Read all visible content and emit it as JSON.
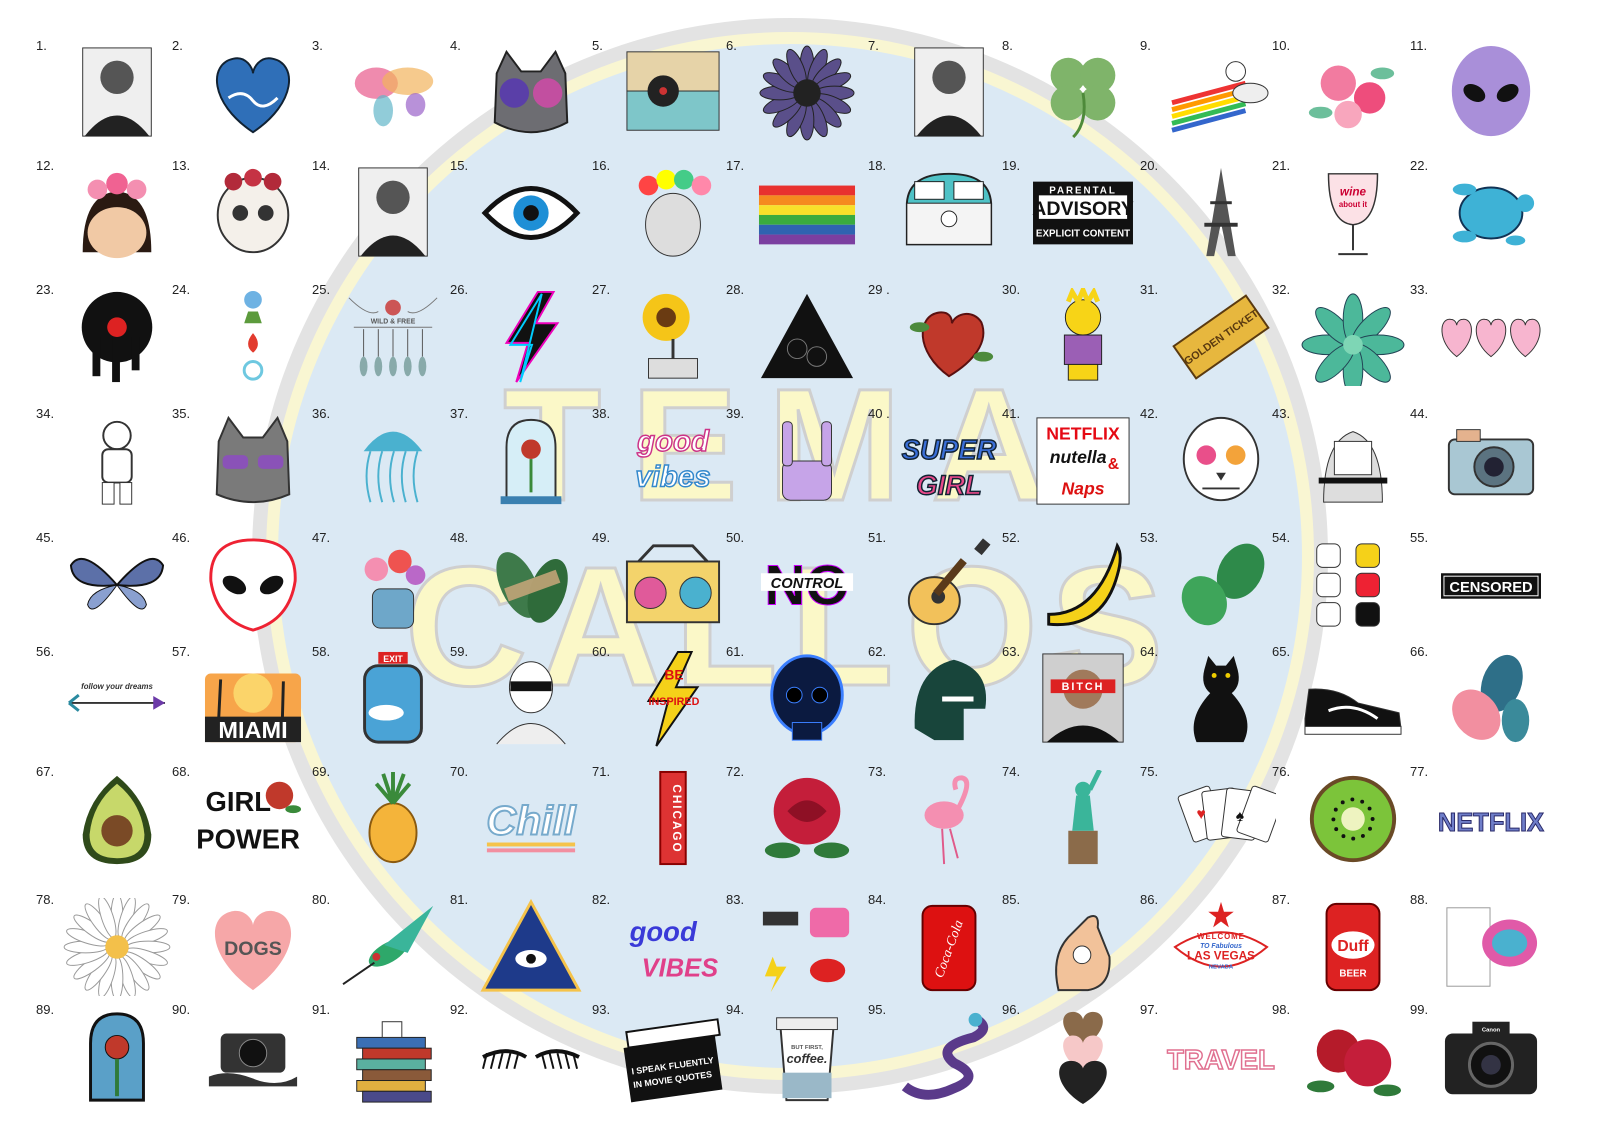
{
  "watermark": {
    "line1": "TEMA",
    "line2": "CALLOS"
  },
  "colors": {
    "circle_fill": "#dbe9f4",
    "ring": "#d8d8d8",
    "watermark_yellow": "#fbf8c8"
  },
  "stickers": [
    {
      "num": "1.",
      "subject": "man-portrait"
    },
    {
      "num": "2.",
      "subject": "ocean-heart"
    },
    {
      "num": "3.",
      "subject": "watercolor-world-map"
    },
    {
      "num": "4.",
      "subject": "cat-with-galaxy-glasses"
    },
    {
      "num": "5.",
      "subject": "record-player"
    },
    {
      "num": "6.",
      "subject": "galaxy-daisy"
    },
    {
      "num": "7.",
      "subject": "man-portrait"
    },
    {
      "num": "8.",
      "subject": "four-leaf-clover"
    },
    {
      "num": "9.",
      "subject": "astronaut-rainbow-rocket"
    },
    {
      "num": "10.",
      "subject": "flower-bouquet"
    },
    {
      "num": "11.",
      "subject": "holographic-alien"
    },
    {
      "num": "12.",
      "subject": "frida-flower-crown"
    },
    {
      "num": "13.",
      "subject": "rose-skull"
    },
    {
      "num": "14.",
      "subject": "man-portrait"
    },
    {
      "num": "15.",
      "subject": "evil-eye"
    },
    {
      "num": "16.",
      "subject": "frida-portrait"
    },
    {
      "num": "17.",
      "subject": "rainbow-flag"
    },
    {
      "num": "18.",
      "subject": "vw-van"
    },
    {
      "num": "19.",
      "subject": "parental-advisory",
      "text": [
        "PARENTAL",
        "ADVISORY",
        "EXPLICIT CONTENT"
      ]
    },
    {
      "num": "20.",
      "subject": "eiffel-tower"
    },
    {
      "num": "21.",
      "subject": "wine-glass",
      "text": [
        "wine",
        "about it"
      ]
    },
    {
      "num": "22.",
      "subject": "sea-turtle"
    },
    {
      "num": "23.",
      "subject": "dripping-vinyl"
    },
    {
      "num": "24.",
      "subject": "elements-symbols"
    },
    {
      "num": "25.",
      "subject": "wild-and-free-dreamcatcher",
      "text": [
        "WILD & FREE"
      ]
    },
    {
      "num": "26.",
      "subject": "lightning-bolt"
    },
    {
      "num": "27.",
      "subject": "sunflower-gramophone"
    },
    {
      "num": "28.",
      "subject": "rose-triangle"
    },
    {
      "num": "29 .",
      "subject": "anatomical-heart"
    },
    {
      "num": "30.",
      "subject": "lisa-simpson"
    },
    {
      "num": "31.",
      "subject": "golden-ticket",
      "text": [
        "GOLDEN TICKET"
      ]
    },
    {
      "num": "32.",
      "subject": "succulent"
    },
    {
      "num": "33.",
      "subject": "three-hearts"
    },
    {
      "num": "34.",
      "subject": "astronaut-peace"
    },
    {
      "num": "35.",
      "subject": "cat-with-sunglasses"
    },
    {
      "num": "36.",
      "subject": "jellyfish"
    },
    {
      "num": "37.",
      "subject": "rose-in-glass-dome"
    },
    {
      "num": "38.",
      "subject": "good-vibes-retro",
      "text": [
        "good",
        "vibes"
      ]
    },
    {
      "num": "39.",
      "subject": "skeleton-rock-hand"
    },
    {
      "num": "40 .",
      "subject": "supergirl-logo",
      "text": [
        "SUPER",
        "GIRL"
      ]
    },
    {
      "num": "41.",
      "subject": "netflix-nutella-naps",
      "text": [
        "NETFLIX",
        "nutella",
        "&",
        "Naps"
      ]
    },
    {
      "num": "42.",
      "subject": "sugar-skull"
    },
    {
      "num": "43.",
      "subject": "girl-hiding-face"
    },
    {
      "num": "44.",
      "subject": "vintage-camera"
    },
    {
      "num": "45.",
      "subject": "galaxy-butterfly"
    },
    {
      "num": "46.",
      "subject": "alien-head"
    },
    {
      "num": "47.",
      "subject": "flowers-in-jar"
    },
    {
      "num": "48.",
      "subject": "taped-leaves"
    },
    {
      "num": "49.",
      "subject": "boombox"
    },
    {
      "num": "50.",
      "subject": "no-control",
      "text": [
        "NO",
        "CONTROL"
      ]
    },
    {
      "num": "51.",
      "subject": "acoustic-guitar"
    },
    {
      "num": "52.",
      "subject": "banana"
    },
    {
      "num": "53.",
      "subject": "monstera-leaves"
    },
    {
      "num": "54.",
      "subject": "lucky-cats"
    },
    {
      "num": "55.",
      "subject": "censored-bar",
      "text": [
        "CENSORED"
      ]
    },
    {
      "num": "56.",
      "subject": "follow-your-dreams-arrow",
      "text": [
        "follow your dreams"
      ]
    },
    {
      "num": "57.",
      "subject": "miami-sunset",
      "text": [
        "MIAMI"
      ]
    },
    {
      "num": "58.",
      "subject": "exit-window",
      "text": [
        "EXIT"
      ]
    },
    {
      "num": "59.",
      "subject": "girl-with-sunglasses"
    },
    {
      "num": "60.",
      "subject": "be-inspired-bolt",
      "text": [
        "BE",
        "INSPIRED"
      ]
    },
    {
      "num": "61.",
      "subject": "x-ray-skull"
    },
    {
      "num": "62.",
      "subject": "spartan-helmet"
    },
    {
      "num": "63.",
      "subject": "man-with-label",
      "text": [
        "BITCH"
      ]
    },
    {
      "num": "64.",
      "subject": "black-cat"
    },
    {
      "num": "65.",
      "subject": "sneaker"
    },
    {
      "num": "66.",
      "subject": "tropical-leaves"
    },
    {
      "num": "67.",
      "subject": "avocado"
    },
    {
      "num": "68.",
      "subject": "girl-power-rose",
      "text": [
        "GIRL",
        "POWER"
      ]
    },
    {
      "num": "69.",
      "subject": "pineapple"
    },
    {
      "num": "70.",
      "subject": "chill-retro",
      "text": [
        "Chill"
      ]
    },
    {
      "num": "71.",
      "subject": "chicago-theatre-sign",
      "text": [
        "CHICAGO"
      ]
    },
    {
      "num": "72.",
      "subject": "red-rose"
    },
    {
      "num": "73.",
      "subject": "flamingo"
    },
    {
      "num": "74.",
      "subject": "statue-of-liberty"
    },
    {
      "num": "75.",
      "subject": "playing-cards"
    },
    {
      "num": "76.",
      "subject": "kiwi-slice"
    },
    {
      "num": "77.",
      "subject": "netflix-logo",
      "text": [
        "NETFLIX"
      ]
    },
    {
      "num": "78.",
      "subject": "daisy"
    },
    {
      "num": "79.",
      "subject": "dogs-heart",
      "text": [
        "DOGS"
      ]
    },
    {
      "num": "80.",
      "subject": "hummingbird"
    },
    {
      "num": "81.",
      "subject": "eye-pyramid"
    },
    {
      "num": "82.",
      "subject": "good-vibes-script",
      "text": [
        "good",
        "VIBES"
      ]
    },
    {
      "num": "83.",
      "subject": "girl-gang-set"
    },
    {
      "num": "84.",
      "subject": "coca-cola-can",
      "text": [
        "Coca-Cola"
      ]
    },
    {
      "num": "85.",
      "subject": "ok-hand"
    },
    {
      "num": "86.",
      "subject": "las-vegas-sign",
      "text": [
        "WELCOME",
        "TO Fabulous",
        "LAS VEGAS",
        "NEVADA"
      ]
    },
    {
      "num": "87.",
      "subject": "duff-beer-can",
      "text": [
        "Duff",
        "BEER"
      ]
    },
    {
      "num": "88.",
      "subject": "doodle-brain"
    },
    {
      "num": "89.",
      "subject": "stained-glass-rose"
    },
    {
      "num": "90.",
      "subject": "melting-camera"
    },
    {
      "num": "91.",
      "subject": "book-stack-coffee"
    },
    {
      "num": "92.",
      "subject": "eyelashes"
    },
    {
      "num": "93.",
      "subject": "movie-clapperboard",
      "text": [
        "I SPEAK FLUENTLY",
        "IN MOVIE QUOTES"
      ]
    },
    {
      "num": "94.",
      "subject": "coffee-cup",
      "text": [
        "BUT FIRST,",
        "coffee."
      ]
    },
    {
      "num": "95.",
      "subject": "snake"
    },
    {
      "num": "96.",
      "subject": "glitter-hearts"
    },
    {
      "num": "97.",
      "subject": "travel-text",
      "text": [
        "TRAVEL"
      ]
    },
    {
      "num": "98.",
      "subject": "red-roses"
    },
    {
      "num": "99.",
      "subject": "dslr-camera",
      "text": [
        "Canon"
      ]
    }
  ]
}
